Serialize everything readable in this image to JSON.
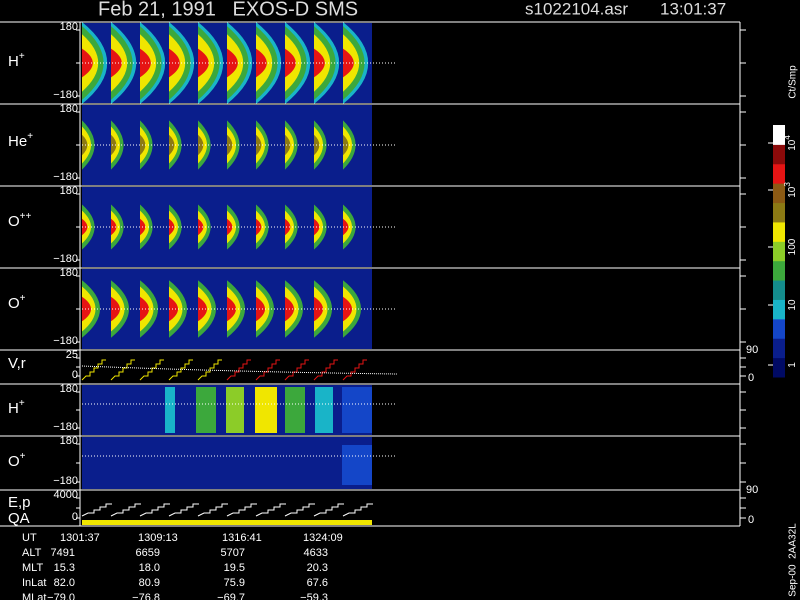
{
  "header": {
    "title": "Feb 21, 1991   EXOS-D SMS",
    "file": "s1022104.asr",
    "time": "13:01:37"
  },
  "panels": [
    {
      "label": "H",
      "sup": "+",
      "top": "180",
      "bottom": "−180"
    },
    {
      "label": "He",
      "sup": "+",
      "top": "180",
      "bottom": "−180"
    },
    {
      "label": "O",
      "sup": "++",
      "top": "180",
      "bottom": "−180"
    },
    {
      "label": "O",
      "sup": "+",
      "top": "180",
      "bottom": "−180"
    },
    {
      "label": "V,r",
      "top": "25",
      "bottom": "0",
      "right_top": "90",
      "right_bottom": "0"
    },
    {
      "label": "H",
      "sup": "+",
      "top": "180",
      "bottom": "−180"
    },
    {
      "label": "O",
      "sup": "+",
      "top": "180",
      "bottom": "−180"
    },
    {
      "label": "E,p",
      "label2": "QA",
      "top": "4000",
      "bottom": "0",
      "right_top": "90",
      "right_bottom": "0"
    }
  ],
  "colorbar": {
    "unit": "Ct/Smp",
    "labels": [
      {
        "base": "10",
        "exp": "4"
      },
      {
        "base": "10",
        "exp": "3"
      },
      {
        "base": "100"
      },
      {
        "base": "10"
      },
      {
        "base": "1"
      }
    ]
  },
  "table": {
    "rows": [
      {
        "label": "UT",
        "values": [
          "1301:37",
          "1309:13",
          "1316:41",
          "1324:09"
        ]
      },
      {
        "label": "ALT",
        "values": [
          "7491",
          "6659",
          "5707",
          "4633"
        ]
      },
      {
        "label": "MLT",
        "values": [
          "15.3",
          "18.0",
          "19.5",
          "20.3"
        ]
      },
      {
        "label": "InLat",
        "values": [
          "82.0",
          "80.9",
          "75.9",
          "67.6"
        ]
      },
      {
        "label": "MLat",
        "values": [
          "−79.0",
          "−76.8",
          "−69.7",
          "−59.3"
        ]
      }
    ]
  },
  "footer": "Sep-00  2AA32L"
}
